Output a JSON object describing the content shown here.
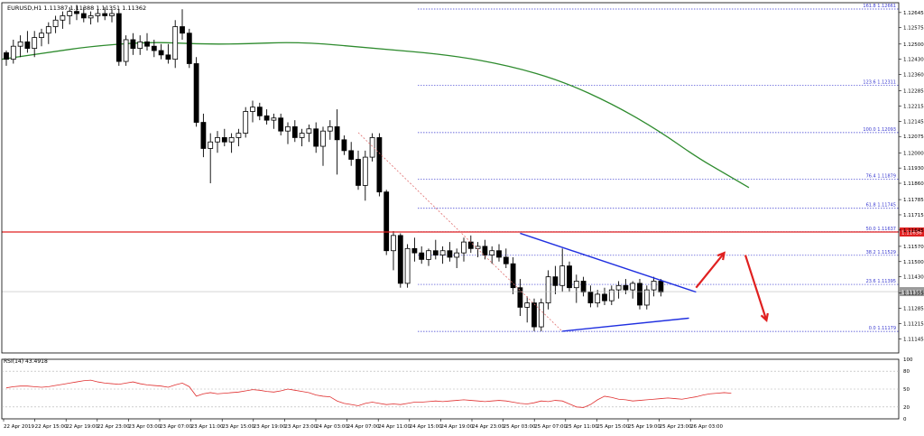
{
  "chart_data": [
    {
      "type": "candlestick",
      "title": "EURUSD,H1  1.11387 1.11388 1.11351 1.11362",
      "symbol": "EURUSD,H1",
      "ohlc_header": [
        "1.11387",
        "1.11388",
        "1.11351",
        "1.11362"
      ],
      "current_price_label": "1.11362",
      "resistance_label": "1.11636",
      "ylim": [
        1.1108,
        1.1269
      ],
      "yticks": [
        "1.12645",
        "1.12575",
        "1.12500",
        "1.12430",
        "1.12360",
        "1.12285",
        "1.12215",
        "1.12145",
        "1.12075",
        "1.12000",
        "1.11930",
        "1.11860",
        "1.11785",
        "1.11715",
        "1.11645",
        "1.11570",
        "1.11500",
        "1.11430",
        "1.11355",
        "1.11285",
        "1.11215",
        "1.11145"
      ],
      "xticks": [
        "22 Apr 2019",
        "22 Apr 15:00",
        "22 Apr 19:00",
        "22 Apr 23:00",
        "23 Apr 03:00",
        "23 Apr 07:00",
        "23 Apr 11:00",
        "23 Apr 15:00",
        "23 Apr 19:00",
        "23 Apr 23:00",
        "24 Apr 03:00",
        "24 Apr 07:00",
        "24 Apr 11:00",
        "24 Apr 15:00",
        "24 Apr 19:00",
        "24 Apr 23:00",
        "25 Apr 03:00",
        "25 Apr 07:00",
        "25 Apr 11:00",
        "25 Apr 15:00",
        "25 Apr 19:00",
        "25 Apr 23:00",
        "26 Apr 03:00"
      ],
      "fib_levels": [
        {
          "label": "161.8 1.12661",
          "price": 1.12661
        },
        {
          "label": "123.6 1.12311",
          "price": 1.12311
        },
        {
          "label": "100.0 1.12093",
          "price": 1.12093
        },
        {
          "label": "76.4 1.11879",
          "price": 1.11879
        },
        {
          "label": "61.8 1.11745",
          "price": 1.11745
        },
        {
          "label": "50.0 1.11637",
          "price": 1.11637
        },
        {
          "label": "38.2 1.11529",
          "price": 1.11529
        },
        {
          "label": "23.6 1.11395",
          "price": 1.11395
        },
        {
          "label": "0.0 1.11179",
          "price": 1.11179
        }
      ],
      "colors": {
        "bull_body": "#ffffff",
        "bear_body": "#000000",
        "wick": "#000000",
        "ma": "#2e8b2e",
        "fib": "#3a3ad0",
        "resistance": "#e02020",
        "trendline": "#1f2fe0",
        "arrow": "#e02020",
        "retrace": "#e07070"
      },
      "candles": [
        [
          1.1246,
          1.1247,
          1.124,
          1.1243
        ],
        [
          1.1243,
          1.1252,
          1.1241,
          1.1249
        ],
        [
          1.1249,
          1.1254,
          1.1244,
          1.1251
        ],
        [
          1.1251,
          1.1256,
          1.1246,
          1.1248
        ],
        [
          1.1248,
          1.1256,
          1.1244,
          1.1253
        ],
        [
          1.1253,
          1.1257,
          1.1249,
          1.1255
        ],
        [
          1.1255,
          1.126,
          1.125,
          1.1258
        ],
        [
          1.1258,
          1.1263,
          1.1255,
          1.1261
        ],
        [
          1.1261,
          1.1265,
          1.1257,
          1.1263
        ],
        [
          1.1263,
          1.1267,
          1.1259,
          1.1265
        ],
        [
          1.1265,
          1.1268,
          1.1261,
          1.1264
        ],
        [
          1.1264,
          1.1267,
          1.126,
          1.1262
        ],
        [
          1.1262,
          1.1265,
          1.1259,
          1.1263
        ],
        [
          1.1263,
          1.1266,
          1.126,
          1.1264
        ],
        [
          1.1264,
          1.1267,
          1.1261,
          1.1263
        ],
        [
          1.1263,
          1.1266,
          1.126,
          1.1264
        ],
        [
          1.1264,
          1.1266,
          1.124,
          1.1242
        ],
        [
          1.1242,
          1.1254,
          1.124,
          1.1252
        ],
        [
          1.1252,
          1.1255,
          1.1245,
          1.1248
        ],
        [
          1.1248,
          1.1254,
          1.1245,
          1.1251
        ],
        [
          1.1251,
          1.1255,
          1.1247,
          1.1249
        ],
        [
          1.1249,
          1.1252,
          1.1244,
          1.1247
        ],
        [
          1.1247,
          1.125,
          1.1243,
          1.1245
        ],
        [
          1.1245,
          1.125,
          1.1241,
          1.1243
        ],
        [
          1.1243,
          1.1261,
          1.1239,
          1.1258
        ],
        [
          1.1258,
          1.1266,
          1.1252,
          1.1255
        ],
        [
          1.1255,
          1.1257,
          1.1239,
          1.1241
        ],
        [
          1.1241,
          1.1244,
          1.1212,
          1.1214
        ],
        [
          1.1214,
          1.1218,
          1.1198,
          1.1202
        ],
        [
          1.1202,
          1.1209,
          1.1186,
          1.1205
        ],
        [
          1.1205,
          1.121,
          1.12,
          1.1207
        ],
        [
          1.1207,
          1.1211,
          1.1203,
          1.1205
        ],
        [
          1.1205,
          1.1209,
          1.12,
          1.1207
        ],
        [
          1.1207,
          1.1211,
          1.1203,
          1.1209
        ],
        [
          1.1209,
          1.1221,
          1.1207,
          1.1219
        ],
        [
          1.1219,
          1.1224,
          1.1214,
          1.1221
        ],
        [
          1.1221,
          1.1223,
          1.1215,
          1.1217
        ],
        [
          1.1217,
          1.122,
          1.1213,
          1.1215
        ],
        [
          1.1215,
          1.1218,
          1.1211,
          1.1216
        ],
        [
          1.1216,
          1.1218,
          1.1208,
          1.121
        ],
        [
          1.121,
          1.1214,
          1.1204,
          1.1212
        ],
        [
          1.1212,
          1.1215,
          1.1205,
          1.1207
        ],
        [
          1.1207,
          1.1211,
          1.1203,
          1.1209
        ],
        [
          1.1209,
          1.1213,
          1.1205,
          1.1211
        ],
        [
          1.1211,
          1.1214,
          1.12,
          1.1203
        ],
        [
          1.1203,
          1.1212,
          1.1194,
          1.121
        ],
        [
          1.121,
          1.1215,
          1.1206,
          1.1212
        ],
        [
          1.1212,
          1.122,
          1.119,
          1.1206
        ],
        [
          1.1206,
          1.1208,
          1.1199,
          1.1201
        ],
        [
          1.1201,
          1.1205,
          1.1194,
          1.1197
        ],
        [
          1.1197,
          1.1201,
          1.1183,
          1.1185
        ],
        [
          1.1185,
          1.1201,
          1.1178,
          1.1198
        ],
        [
          1.1198,
          1.1209,
          1.1196,
          1.1207
        ],
        [
          1.1207,
          1.1209,
          1.118,
          1.1182
        ],
        [
          1.1182,
          1.1183,
          1.1153,
          1.1155
        ],
        [
          1.1155,
          1.1164,
          1.1146,
          1.1162
        ],
        [
          1.1162,
          1.1163,
          1.1138,
          1.114
        ],
        [
          1.114,
          1.1158,
          1.1138,
          1.1156
        ],
        [
          1.1156,
          1.1161,
          1.115,
          1.1154
        ],
        [
          1.1154,
          1.1157,
          1.1149,
          1.1151
        ],
        [
          1.1151,
          1.1156,
          1.1148,
          1.1155
        ],
        [
          1.1155,
          1.116,
          1.1151,
          1.1153
        ],
        [
          1.1153,
          1.1157,
          1.1149,
          1.1155
        ],
        [
          1.1155,
          1.1159,
          1.115,
          1.1152
        ],
        [
          1.1152,
          1.1156,
          1.1147,
          1.1154
        ],
        [
          1.1154,
          1.1161,
          1.115,
          1.1159
        ],
        [
          1.1159,
          1.1162,
          1.1154,
          1.1156
        ],
        [
          1.1156,
          1.1159,
          1.1152,
          1.1157
        ],
        [
          1.1157,
          1.116,
          1.1151,
          1.1153
        ],
        [
          1.1153,
          1.1157,
          1.1149,
          1.1155
        ],
        [
          1.1155,
          1.1158,
          1.115,
          1.1152
        ],
        [
          1.1152,
          1.1156,
          1.1147,
          1.1149
        ],
        [
          1.1149,
          1.1152,
          1.1135,
          1.1138
        ],
        [
          1.1138,
          1.1142,
          1.1125,
          1.1129
        ],
        [
          1.1129,
          1.1134,
          1.1122,
          1.1131
        ],
        [
          1.1131,
          1.1133,
          1.1118,
          1.112
        ],
        [
          1.112,
          1.1133,
          1.1118,
          1.1131
        ],
        [
          1.1131,
          1.1146,
          1.1128,
          1.1143
        ],
        [
          1.1143,
          1.1148,
          1.1135,
          1.1139
        ],
        [
          1.1139,
          1.1156,
          1.1136,
          1.1148
        ],
        [
          1.1148,
          1.115,
          1.1136,
          1.1138
        ],
        [
          1.1138,
          1.1144,
          1.1131,
          1.1141
        ],
        [
          1.1141,
          1.1143,
          1.1134,
          1.1136
        ],
        [
          1.1136,
          1.1139,
          1.1129,
          1.1131
        ],
        [
          1.1131,
          1.1137,
          1.1129,
          1.1135
        ],
        [
          1.1135,
          1.1138,
          1.113,
          1.1132
        ],
        [
          1.1132,
          1.1139,
          1.113,
          1.1137
        ],
        [
          1.1137,
          1.1141,
          1.1133,
          1.1139
        ],
        [
          1.1139,
          1.1142,
          1.1135,
          1.1137
        ],
        [
          1.1137,
          1.1141,
          1.1133,
          1.114
        ],
        [
          1.114,
          1.1142,
          1.1128,
          1.113
        ],
        [
          1.113,
          1.1139,
          1.1128,
          1.1137
        ],
        [
          1.1137,
          1.1143,
          1.1134,
          1.1141
        ],
        [
          1.1141,
          1.1142,
          1.1134,
          1.1136
        ]
      ],
      "ma": [
        [
          0,
          1.1243
        ],
        [
          0.06,
          1.1246
        ],
        [
          0.12,
          1.1249
        ],
        [
          0.2,
          1.1251
        ],
        [
          0.26,
          1.125
        ],
        [
          0.32,
          1.125
        ],
        [
          0.4,
          1.1251
        ],
        [
          0.5,
          1.1248
        ],
        [
          0.6,
          1.1245
        ],
        [
          0.68,
          1.124
        ],
        [
          0.75,
          1.1233
        ],
        [
          0.82,
          1.1222
        ],
        [
          0.88,
          1.121
        ],
        [
          0.93,
          1.1198
        ],
        [
          0.97,
          1.119
        ],
        [
          1.0,
          1.1184
        ]
      ],
      "annotations": {
        "resistance_price": 1.11636,
        "current_price": 1.11362,
        "retracement_line": [
          [
            50,
            1.12093
          ],
          [
            79,
            1.11179
          ]
        ],
        "upper_trendline": [
          [
            73,
            1.1163
          ],
          [
            98,
            1.1136
          ]
        ],
        "lower_trendline": [
          [
            79,
            1.1118
          ],
          [
            97,
            1.1124
          ]
        ],
        "arrow_up": [
          [
            98,
            1.1138
          ],
          [
            102,
            1.1154
          ]
        ],
        "arrow_down": [
          [
            105,
            1.1153
          ],
          [
            108,
            1.1123
          ]
        ]
      }
    },
    {
      "type": "line",
      "title": "RSI(14) 43.4918",
      "ylim": [
        0,
        100
      ],
      "yticks": [
        "100",
        "80",
        "50",
        "20",
        "0"
      ],
      "levels": [
        80,
        50,
        20
      ],
      "values": [
        52,
        54,
        55,
        55,
        54,
        53,
        54,
        56,
        58,
        60,
        62,
        64,
        65,
        62,
        60,
        59,
        58,
        60,
        62,
        59,
        57,
        56,
        55,
        53,
        57,
        60,
        54,
        38,
        42,
        44,
        42,
        43,
        44,
        45,
        47,
        49,
        48,
        46,
        45,
        47,
        50,
        48,
        46,
        44,
        40,
        38,
        37,
        30,
        26,
        24,
        22,
        26,
        28,
        26,
        24,
        25,
        24,
        26,
        28,
        28,
        29,
        30,
        29,
        30,
        31,
        32,
        31,
        30,
        29,
        30,
        31,
        30,
        28,
        26,
        25,
        27,
        30,
        29,
        31,
        30,
        25,
        20,
        19,
        24,
        32,
        38,
        36,
        33,
        32,
        30,
        31,
        32,
        33,
        34,
        35,
        34,
        33,
        35,
        37,
        40,
        42,
        43,
        44,
        43
      ]
    }
  ]
}
